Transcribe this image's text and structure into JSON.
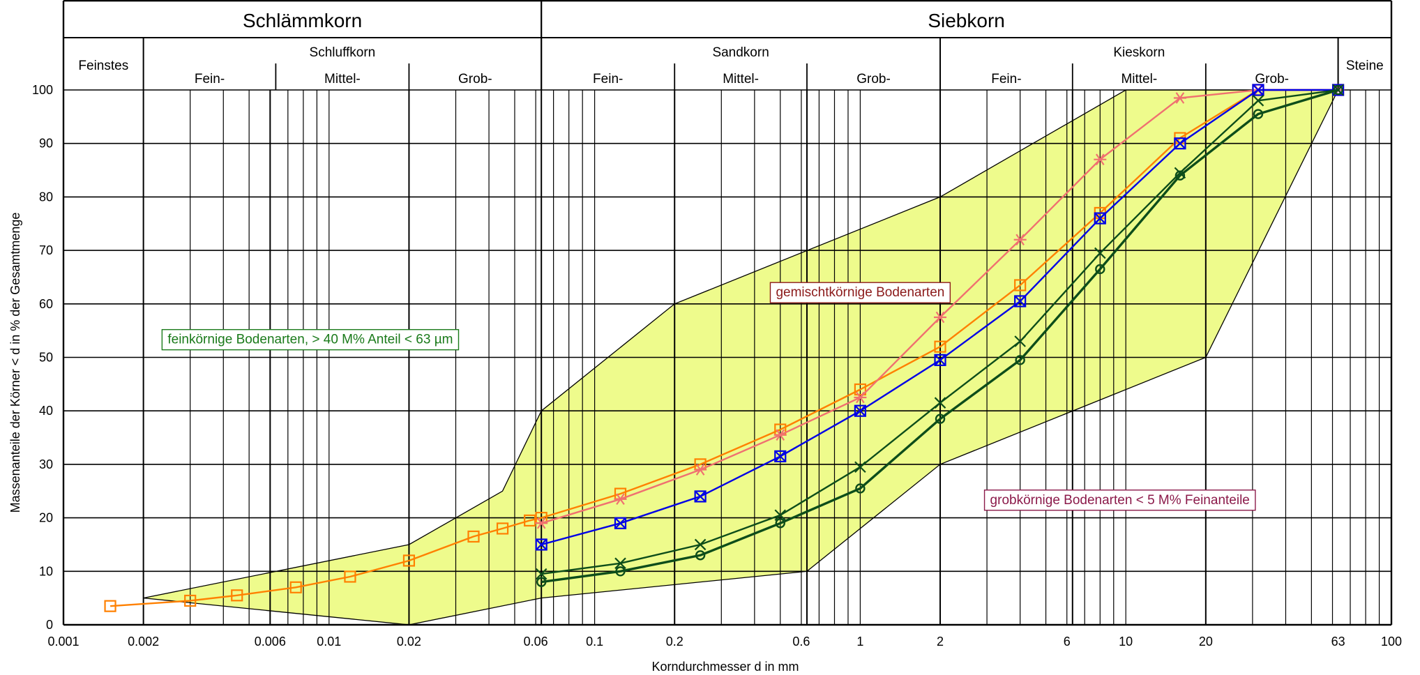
{
  "chart_data": {
    "type": "line",
    "title": "",
    "xlabel": "Korndurchmesser d in mm",
    "ylabel": "Massenanteile der Körner < d in % der Gesamtmenge",
    "x_scale": "log",
    "xlim": [
      0.001,
      100
    ],
    "ylim": [
      0,
      100
    ],
    "grid": true,
    "y_ticks": [
      0,
      10,
      20,
      30,
      40,
      50,
      60,
      70,
      80,
      90,
      100
    ],
    "x_ticks": [
      {
        "value": 0.001,
        "label": "0.001"
      },
      {
        "value": 0.002,
        "label": "0.002"
      },
      {
        "value": 0.006,
        "label": "0.006"
      },
      {
        "value": 0.01,
        "label": "0.01"
      },
      {
        "value": 0.02,
        "label": "0.02"
      },
      {
        "value": 0.06,
        "label": "0.06"
      },
      {
        "value": 0.1,
        "label": "0.1"
      },
      {
        "value": 0.2,
        "label": "0.2"
      },
      {
        "value": 0.6,
        "label": "0.6"
      },
      {
        "value": 1,
        "label": "1"
      },
      {
        "value": 2,
        "label": "2"
      },
      {
        "value": 6,
        "label": "6"
      },
      {
        "value": 10,
        "label": "10"
      },
      {
        "value": 20,
        "label": "20"
      },
      {
        "value": 63,
        "label": "63"
      },
      {
        "value": 100,
        "label": "100"
      }
    ],
    "header": {
      "top": [
        {
          "label": "Schlämmkorn",
          "from": 0.001,
          "to": 0.063
        },
        {
          "label": "Siebkorn",
          "from": 0.063,
          "to": 100
        }
      ],
      "groups": [
        {
          "label": "Feinstes",
          "from": 0.001,
          "to": 0.002
        },
        {
          "label": "Schluffkorn",
          "from": 0.002,
          "to": 0.063
        },
        {
          "label": "Sandkorn",
          "from": 0.063,
          "to": 2
        },
        {
          "label": "Kieskorn",
          "from": 2,
          "to": 63
        },
        {
          "label": "Steine",
          "from": 63,
          "to": 100
        }
      ],
      "subgroups": [
        {
          "label": "Fein-",
          "from": 0.002,
          "to": 0.0063
        },
        {
          "label": "Mittel-",
          "from": 0.0063,
          "to": 0.02
        },
        {
          "label": "Grob-",
          "from": 0.02,
          "to": 0.063
        },
        {
          "label": "Fein-",
          "from": 0.063,
          "to": 0.2
        },
        {
          "label": "Mittel-",
          "from": 0.2,
          "to": 0.63
        },
        {
          "label": "Grob-",
          "from": 0.63,
          "to": 2
        },
        {
          "label": "Fein-",
          "from": 2,
          "to": 6.3
        },
        {
          "label": "Mittel-",
          "from": 6.3,
          "to": 20
        },
        {
          "label": "Grob-",
          "from": 20,
          "to": 63
        }
      ]
    },
    "regions": [
      {
        "label": "feinkörnige Bodenarten, > 40 M% Anteil < 63 µm",
        "color": "#1a7a1a",
        "label_pos": [
          0.0085,
          53.5
        ]
      },
      {
        "label": "gemischtkörnige Bodenarten",
        "color": "#8b1a1a",
        "label_pos": [
          1.0,
          62.3
        ]
      },
      {
        "label": "grobkörnige Bodenarten < 5 M% Feinanteile",
        "color": "#8b1a4a",
        "label_pos": [
          9.5,
          23.5
        ]
      }
    ],
    "band_polygon": [
      [
        0.002,
        5
      ],
      [
        0.02,
        15
      ],
      [
        0.045,
        25
      ],
      [
        0.063,
        40
      ],
      [
        0.2,
        60
      ],
      [
        2,
        80
      ],
      [
        10,
        100
      ],
      [
        63,
        100
      ],
      [
        20,
        50
      ],
      [
        2,
        30
      ],
      [
        0.63,
        10
      ],
      [
        0.063,
        5
      ],
      [
        0.02,
        0
      ],
      [
        0.002,
        5
      ]
    ],
    "band_color": "#eefb8c",
    "series": [
      {
        "color": "#ff8000",
        "marker": "square",
        "points": [
          [
            0.0015,
            3.5
          ],
          [
            0.003,
            4.5
          ],
          [
            0.0045,
            5.5
          ],
          [
            0.0075,
            7
          ],
          [
            0.012,
            9
          ],
          [
            0.02,
            12
          ],
          [
            0.035,
            16.5
          ],
          [
            0.045,
            18
          ],
          [
            0.057,
            19.5
          ],
          [
            0.063,
            20
          ],
          [
            0.125,
            24.5
          ],
          [
            0.25,
            30
          ],
          [
            0.5,
            36.5
          ],
          [
            1,
            44
          ],
          [
            2,
            52
          ],
          [
            4,
            63.5
          ],
          [
            8,
            77
          ],
          [
            16,
            91
          ],
          [
            31.5,
            100
          ],
          [
            63,
            100
          ]
        ]
      },
      {
        "color": "#f07070",
        "marker": "asterisk",
        "points": [
          [
            0.063,
            19
          ],
          [
            0.125,
            23.5
          ],
          [
            0.25,
            29
          ],
          [
            0.5,
            35.5
          ],
          [
            1,
            42.5
          ],
          [
            2,
            57.5
          ],
          [
            4,
            72
          ],
          [
            8,
            87
          ],
          [
            16,
            98.5
          ],
          [
            31.5,
            100
          ],
          [
            63,
            100
          ]
        ]
      },
      {
        "color": "#0000e6",
        "marker": "boxx",
        "points": [
          [
            0.063,
            15
          ],
          [
            0.125,
            19
          ],
          [
            0.25,
            24
          ],
          [
            0.5,
            31.5
          ],
          [
            1,
            40
          ],
          [
            2,
            49.5
          ],
          [
            4,
            60.5
          ],
          [
            8,
            76
          ],
          [
            16,
            90
          ],
          [
            31.5,
            100
          ],
          [
            63,
            100
          ]
        ]
      },
      {
        "color": "#0d4d1a",
        "marker": "x",
        "points": [
          [
            0.063,
            9.5
          ],
          [
            0.125,
            11.5
          ],
          [
            0.25,
            15
          ],
          [
            0.5,
            20.5
          ],
          [
            1,
            29.5
          ],
          [
            2,
            41.5
          ],
          [
            4,
            53
          ],
          [
            8,
            69.5
          ],
          [
            16,
            84.5
          ],
          [
            31.5,
            98
          ],
          [
            63,
            100
          ]
        ]
      },
      {
        "color": "#0d4d1a",
        "marker": "circle",
        "points": [
          [
            0.063,
            8
          ],
          [
            0.125,
            10
          ],
          [
            0.25,
            13
          ],
          [
            0.5,
            19
          ],
          [
            1,
            25.5
          ],
          [
            2,
            38.5
          ],
          [
            4,
            49.5
          ],
          [
            8,
            66.5
          ],
          [
            16,
            84
          ],
          [
            31.5,
            95.5
          ],
          [
            63,
            100
          ]
        ]
      }
    ]
  }
}
